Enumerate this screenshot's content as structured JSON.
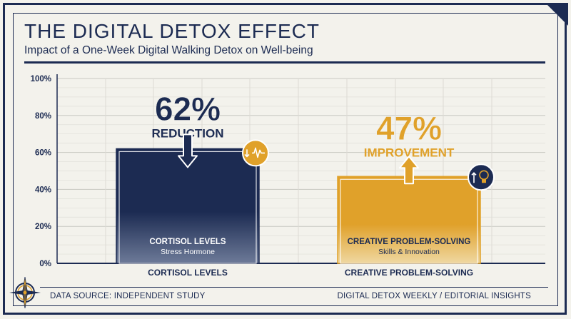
{
  "header": {
    "title": "THE DIGITAL DETOX EFFECT",
    "subtitle": "Impact of a One-Week Digital Walking Detox on Well-being"
  },
  "footer": {
    "source": "DATA SOURCE: INDEPENDENT STUDY",
    "credit": "DIGITAL DETOX WEEKLY / EDITORIAL INSIGHTS"
  },
  "colors": {
    "navy": "#1c2b52",
    "gold": "#e0a12a",
    "background": "#f3f2ec"
  },
  "chart_data": {
    "type": "bar",
    "categories": [
      "CORTISOL LEVELS",
      "CREATIVE PROBLEM-SOLVING"
    ],
    "values": [
      62,
      47
    ],
    "ylim": [
      0,
      100
    ],
    "yticks": [
      "0%",
      "20%",
      "40%",
      "60%",
      "80%",
      "100%"
    ],
    "grid": true,
    "bars": [
      {
        "value_label": "62%",
        "callout": "REDUCTION",
        "inner_title": "CORTISOL LEVELS",
        "inner_subtitle": "Stress Hormone",
        "arrow": "down",
        "icon": "pulse-down-icon",
        "color": "#1c2b52"
      },
      {
        "value_label": "47%",
        "callout": "IMPROVEMENT",
        "inner_title": "CREATIVE PROBLEM-SOLVING",
        "inner_subtitle": "Skills & Innovation",
        "arrow": "up",
        "icon": "lightbulb-up-icon",
        "color": "#e0a12a"
      }
    ]
  }
}
